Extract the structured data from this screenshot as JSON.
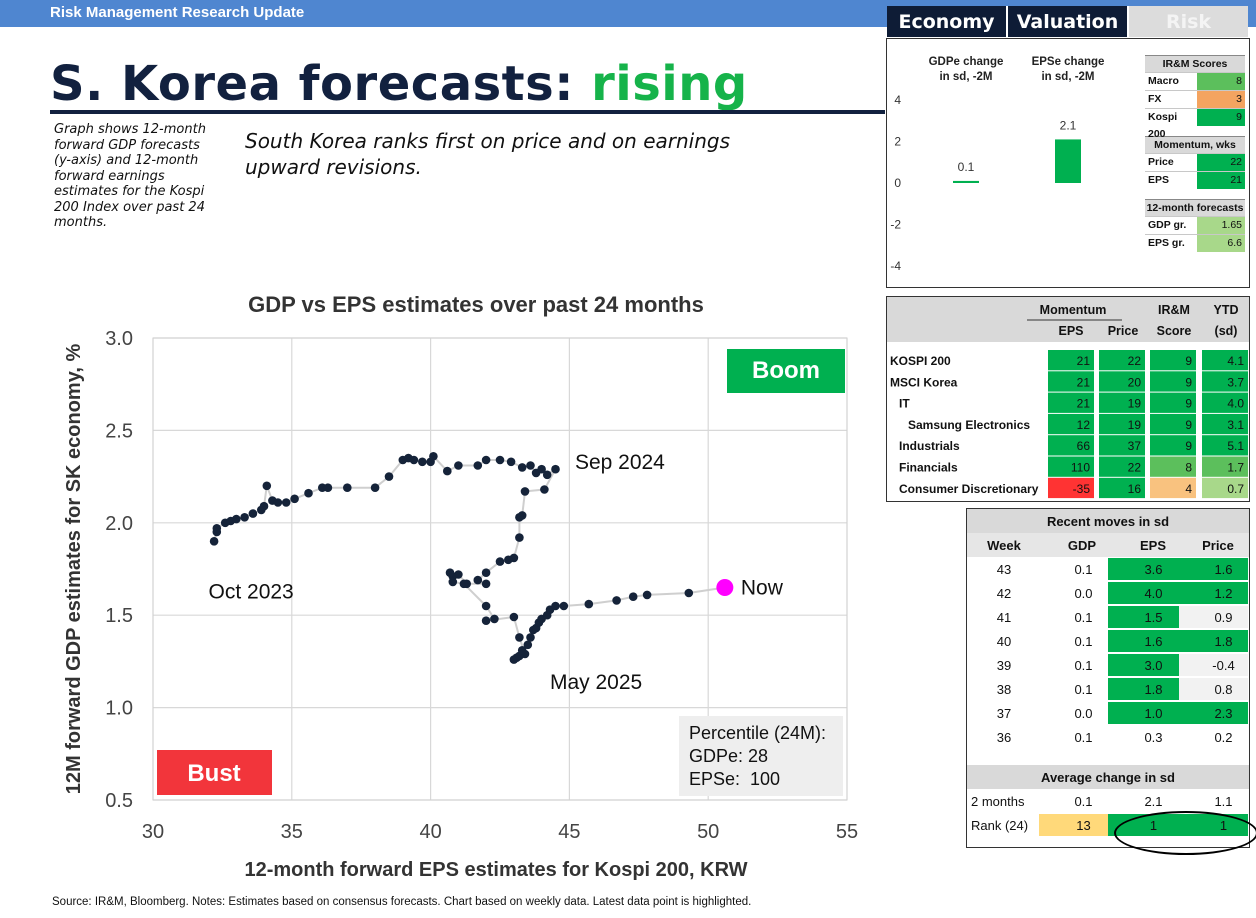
{
  "header": {
    "banner": "Risk Management Research Update"
  },
  "title": {
    "main": "S. Korea forecasts:",
    "highlight": "rising"
  },
  "description": "Graph shows 12-month forward GDP forecasts (y-axis) and 12-month forward earnings estimates for the Kospi 200 Index over past 24 months.",
  "summary": "South Korea ranks first on price and on earnings upward revisions.",
  "tabs": [
    {
      "label": "Economy",
      "active": true
    },
    {
      "label": "Valuation",
      "active": true
    },
    {
      "label": "Risk",
      "active": false
    }
  ],
  "colors": {
    "dark_green": "#00b050",
    "mid_green": "#5cbf5c",
    "light_green": "#a8d88a",
    "orange": "#f4a460",
    "red": "#ff3333",
    "yellow": "#ffd97a",
    "navy": "#12213f",
    "magenta": "#ff00ff",
    "marker": "#152339"
  },
  "chart_data": [
    {
      "type": "scatter",
      "title": "GDP vs EPS estimates over past 24 months",
      "xlabel": "12-month forward EPS estimates for Kospi 200, KRW",
      "ylabel": "12M forward GDP estimates for SK economy, %",
      "xlim": [
        30,
        55
      ],
      "ylim": [
        0.5,
        3.0
      ],
      "xticks": [
        "30",
        "35",
        "40",
        "45",
        "50",
        "55"
      ],
      "yticks": [
        "0.5",
        "1.0",
        "1.5",
        "2.0",
        "2.5",
        "3.0"
      ],
      "grid": true,
      "x": [
        32.2,
        32.3,
        32.3,
        32.6,
        32.8,
        33.0,
        33.3,
        33.6,
        33.9,
        34.0,
        34.1,
        34.3,
        34.5,
        34.8,
        35.1,
        35.6,
        36.1,
        36.3,
        37.0,
        38.0,
        38.5,
        39.0,
        39.2,
        39.4,
        39.7,
        40.0,
        40.1,
        40.6,
        41.0,
        41.7,
        42.0,
        42.5,
        42.9,
        43.3,
        43.6,
        43.8,
        44.0,
        44.2,
        44.5,
        44.1,
        43.4,
        43.3,
        43.2,
        43.2,
        43.0,
        42.8,
        42.5,
        42.0,
        41.7,
        42.0,
        41.3,
        41.0,
        40.8,
        40.7,
        40.8,
        41.2,
        42.0,
        42.3,
        42.0,
        43.0,
        43.2,
        43.4,
        43.1,
        43.0,
        43.2,
        43.3,
        43.5,
        43.6,
        43.7,
        43.8,
        43.9,
        44.0,
        44.2,
        44.3,
        44.5,
        44.8,
        45.7,
        46.7,
        47.3,
        47.8,
        49.3
      ],
      "y": [
        1.9,
        1.95,
        1.97,
        2.0,
        2.01,
        2.02,
        2.03,
        2.05,
        2.07,
        2.09,
        2.2,
        2.12,
        2.11,
        2.11,
        2.13,
        2.16,
        2.19,
        2.19,
        2.19,
        2.19,
        2.25,
        2.34,
        2.35,
        2.34,
        2.33,
        2.33,
        2.36,
        2.28,
        2.31,
        2.31,
        2.34,
        2.34,
        2.33,
        2.3,
        2.31,
        2.27,
        2.29,
        2.26,
        2.29,
        2.18,
        2.17,
        2.04,
        2.03,
        1.92,
        1.81,
        1.8,
        1.79,
        1.73,
        1.69,
        1.67,
        1.67,
        1.72,
        1.71,
        1.73,
        1.68,
        1.67,
        1.55,
        1.48,
        1.47,
        1.49,
        1.38,
        1.29,
        1.27,
        1.26,
        1.28,
        1.31,
        1.34,
        1.38,
        1.42,
        1.43,
        1.46,
        1.48,
        1.5,
        1.53,
        1.55,
        1.55,
        1.56,
        1.58,
        1.6,
        1.61,
        1.62
      ],
      "latest_point": {
        "x": 50.6,
        "y": 1.65,
        "label": "Now"
      },
      "annotations": [
        {
          "text": "Oct 2023",
          "x": 32.0,
          "y": 1.59
        },
        {
          "text": "Sep 2024",
          "x": 45.2,
          "y": 2.29
        },
        {
          "text": "May 2025",
          "x": 44.3,
          "y": 1.1
        },
        {
          "text": "Boom",
          "position": "top-right"
        },
        {
          "text": "Bust",
          "position": "bottom-left"
        }
      ],
      "percentile_box": {
        "title": "Percentile (24M):",
        "lines": [
          "GDPe: 28",
          "EPSe:  100"
        ]
      }
    },
    {
      "type": "bar",
      "categories": [
        "GDPe change in sd, -2M",
        "EPSe change in sd, -2M"
      ],
      "category_lines": [
        [
          "GDPe change",
          "in sd, -2M"
        ],
        [
          "EPSe change",
          "in sd, -2M"
        ]
      ],
      "values": [
        0.1,
        2.1
      ],
      "value_labels": [
        "0.1",
        "2.1"
      ],
      "ylim": [
        -4,
        4
      ],
      "yticks": [
        "4",
        "2",
        "0",
        "-2",
        "-4"
      ]
    }
  ],
  "scores": {
    "header": "IR&M Scores",
    "rows": [
      {
        "label": "Macro",
        "value": "8",
        "color": "#5cbf5c"
      },
      {
        "label": "FX",
        "value": "3",
        "color": "#f4a460"
      },
      {
        "label": "Kospi 200",
        "value": "9",
        "color": "#00b050"
      }
    ],
    "momentum_header": "Momentum, wks",
    "momentum": [
      {
        "label": "Price",
        "value": "22",
        "color": "#00b050"
      },
      {
        "label": "EPS",
        "value": "21",
        "color": "#00b050"
      }
    ],
    "forecast_header": "12-month forecasts",
    "forecasts": [
      {
        "label": "GDP gr.",
        "value": "1.65",
        "color": "#a8d88a"
      },
      {
        "label": "EPS gr.",
        "value": "6.6",
        "color": "#a8d88a"
      }
    ]
  },
  "sector_table": {
    "group_headers": [
      "Momentum",
      "IR&M",
      "YTD"
    ],
    "sub_headers": [
      "EPS",
      "Price",
      "Score",
      "(sd)"
    ],
    "rows": [
      {
        "name": "KOSPI 200",
        "indent": 0,
        "eps": "21",
        "price": "22",
        "score": "9",
        "ytd": "4.1"
      },
      {
        "name": "MSCI Korea",
        "indent": 0,
        "eps": "21",
        "price": "20",
        "score": "9",
        "ytd": "3.7"
      },
      {
        "name": "IT",
        "indent": 1,
        "eps": "21",
        "price": "19",
        "score": "9",
        "ytd": "4.0"
      },
      {
        "name": "Samsung Electronics",
        "indent": 2,
        "eps": "12",
        "price": "19",
        "score": "9",
        "ytd": "3.1"
      },
      {
        "name": "Industrials",
        "indent": 1,
        "eps": "66",
        "price": "37",
        "score": "9",
        "ytd": "5.1"
      },
      {
        "name": "Financials",
        "indent": 1,
        "eps": "110",
        "price": "22",
        "score": "8",
        "ytd": "1.7"
      },
      {
        "name": "Consumer Discretionary",
        "indent": 1,
        "eps": "-35",
        "price": "16",
        "score": "4",
        "ytd": "0.7"
      }
    ],
    "colors": [
      [
        "#00b050",
        "#00b050",
        "#00b050",
        "#00b050"
      ],
      [
        "#00b050",
        "#00b050",
        "#00b050",
        "#00b050"
      ],
      [
        "#00b050",
        "#00b050",
        "#00b050",
        "#00b050"
      ],
      [
        "#00b050",
        "#00b050",
        "#00b050",
        "#00b050"
      ],
      [
        "#00b050",
        "#00b050",
        "#00b050",
        "#00b050"
      ],
      [
        "#00b050",
        "#00b050",
        "#5cbf5c",
        "#5cbf5c"
      ],
      [
        "#ff3333",
        "#00b050",
        "#f9c27f",
        "#a8d88a"
      ]
    ]
  },
  "moves_table": {
    "title": "Recent moves in sd",
    "headers": [
      "Week",
      "GDP",
      "EPS",
      "Price"
    ],
    "rows": [
      {
        "week": "43",
        "gdp": "0.1",
        "eps": "3.6",
        "price": "1.6"
      },
      {
        "week": "42",
        "gdp": "0.0",
        "eps": "4.0",
        "price": "1.2"
      },
      {
        "week": "41",
        "gdp": "0.1",
        "eps": "1.5",
        "price": "0.9"
      },
      {
        "week": "40",
        "gdp": "0.1",
        "eps": "1.6",
        "price": "1.8"
      },
      {
        "week": "39",
        "gdp": "0.1",
        "eps": "3.0",
        "price": "-0.4"
      },
      {
        "week": "38",
        "gdp": "0.1",
        "eps": "1.8",
        "price": "0.8"
      },
      {
        "week": "37",
        "gdp": "0.0",
        "eps": "1.0",
        "price": "2.3"
      },
      {
        "week": "36",
        "gdp": "0.1",
        "eps": "0.3",
        "price": "0.2"
      }
    ],
    "colors": [
      [
        "",
        "#00b050",
        "#00b050"
      ],
      [
        "",
        "#00b050",
        "#00b050"
      ],
      [
        "",
        "#00b050",
        "#f2f2f2"
      ],
      [
        "",
        "#00b050",
        "#00b050"
      ],
      [
        "",
        "#00b050",
        "#f2f2f2"
      ],
      [
        "",
        "#00b050",
        "#f2f2f2"
      ],
      [
        "",
        "#00b050",
        "#00b050"
      ],
      [
        "",
        "",
        ""
      ]
    ],
    "average_title": "Average change in sd",
    "average_rows": [
      {
        "label": "2 months",
        "gdp": "0.1",
        "eps": "2.1",
        "price": "1.1"
      },
      {
        "label": "Rank (24)",
        "gdp": "13",
        "eps": "1",
        "price": "1"
      }
    ],
    "average_colors": [
      [
        "",
        "",
        ""
      ],
      [
        "#ffd97a",
        "#00b050",
        "#00b050"
      ]
    ]
  },
  "source": "Source: IR&M, Bloomberg. Notes: Estimates based on consensus forecasts. Chart based on weekly data. Latest data point is highlighted."
}
